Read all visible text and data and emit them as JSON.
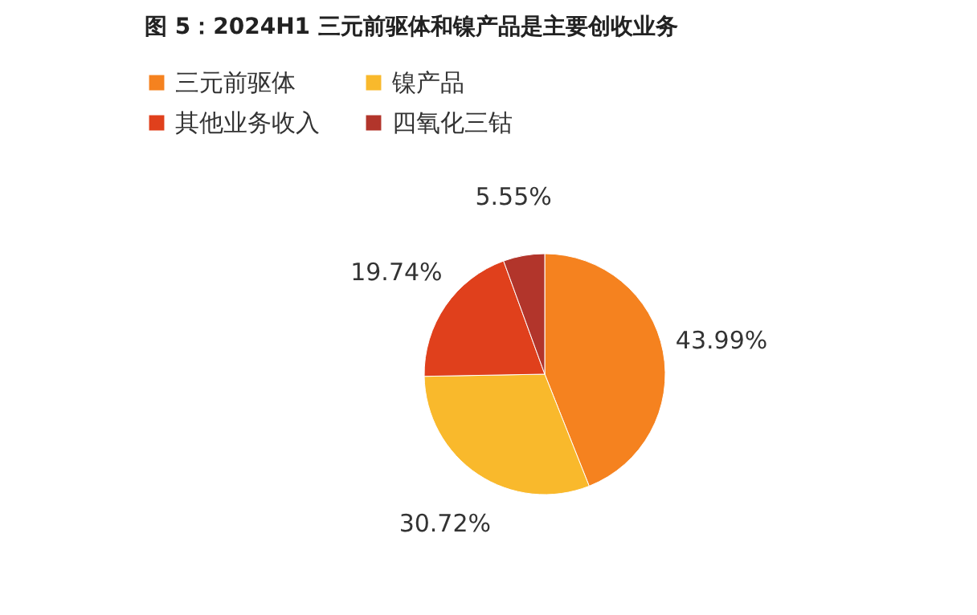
{
  "chart_data": {
    "type": "pie",
    "title": "图 5：2024H1 三元前驱体和镍产品是主要创收业务",
    "categories": [
      "三元前驱体",
      "镍产品",
      "其他业务收入",
      "四氧化三钴"
    ],
    "values": [
      43.99,
      30.72,
      19.74,
      5.55
    ],
    "colors": [
      "#f5821f",
      "#f9b92c",
      "#e0401c",
      "#b2352b"
    ],
    "value_labels": [
      "43.99%",
      "30.72%",
      "19.74%",
      "5.55%"
    ],
    "legend": "top"
  }
}
